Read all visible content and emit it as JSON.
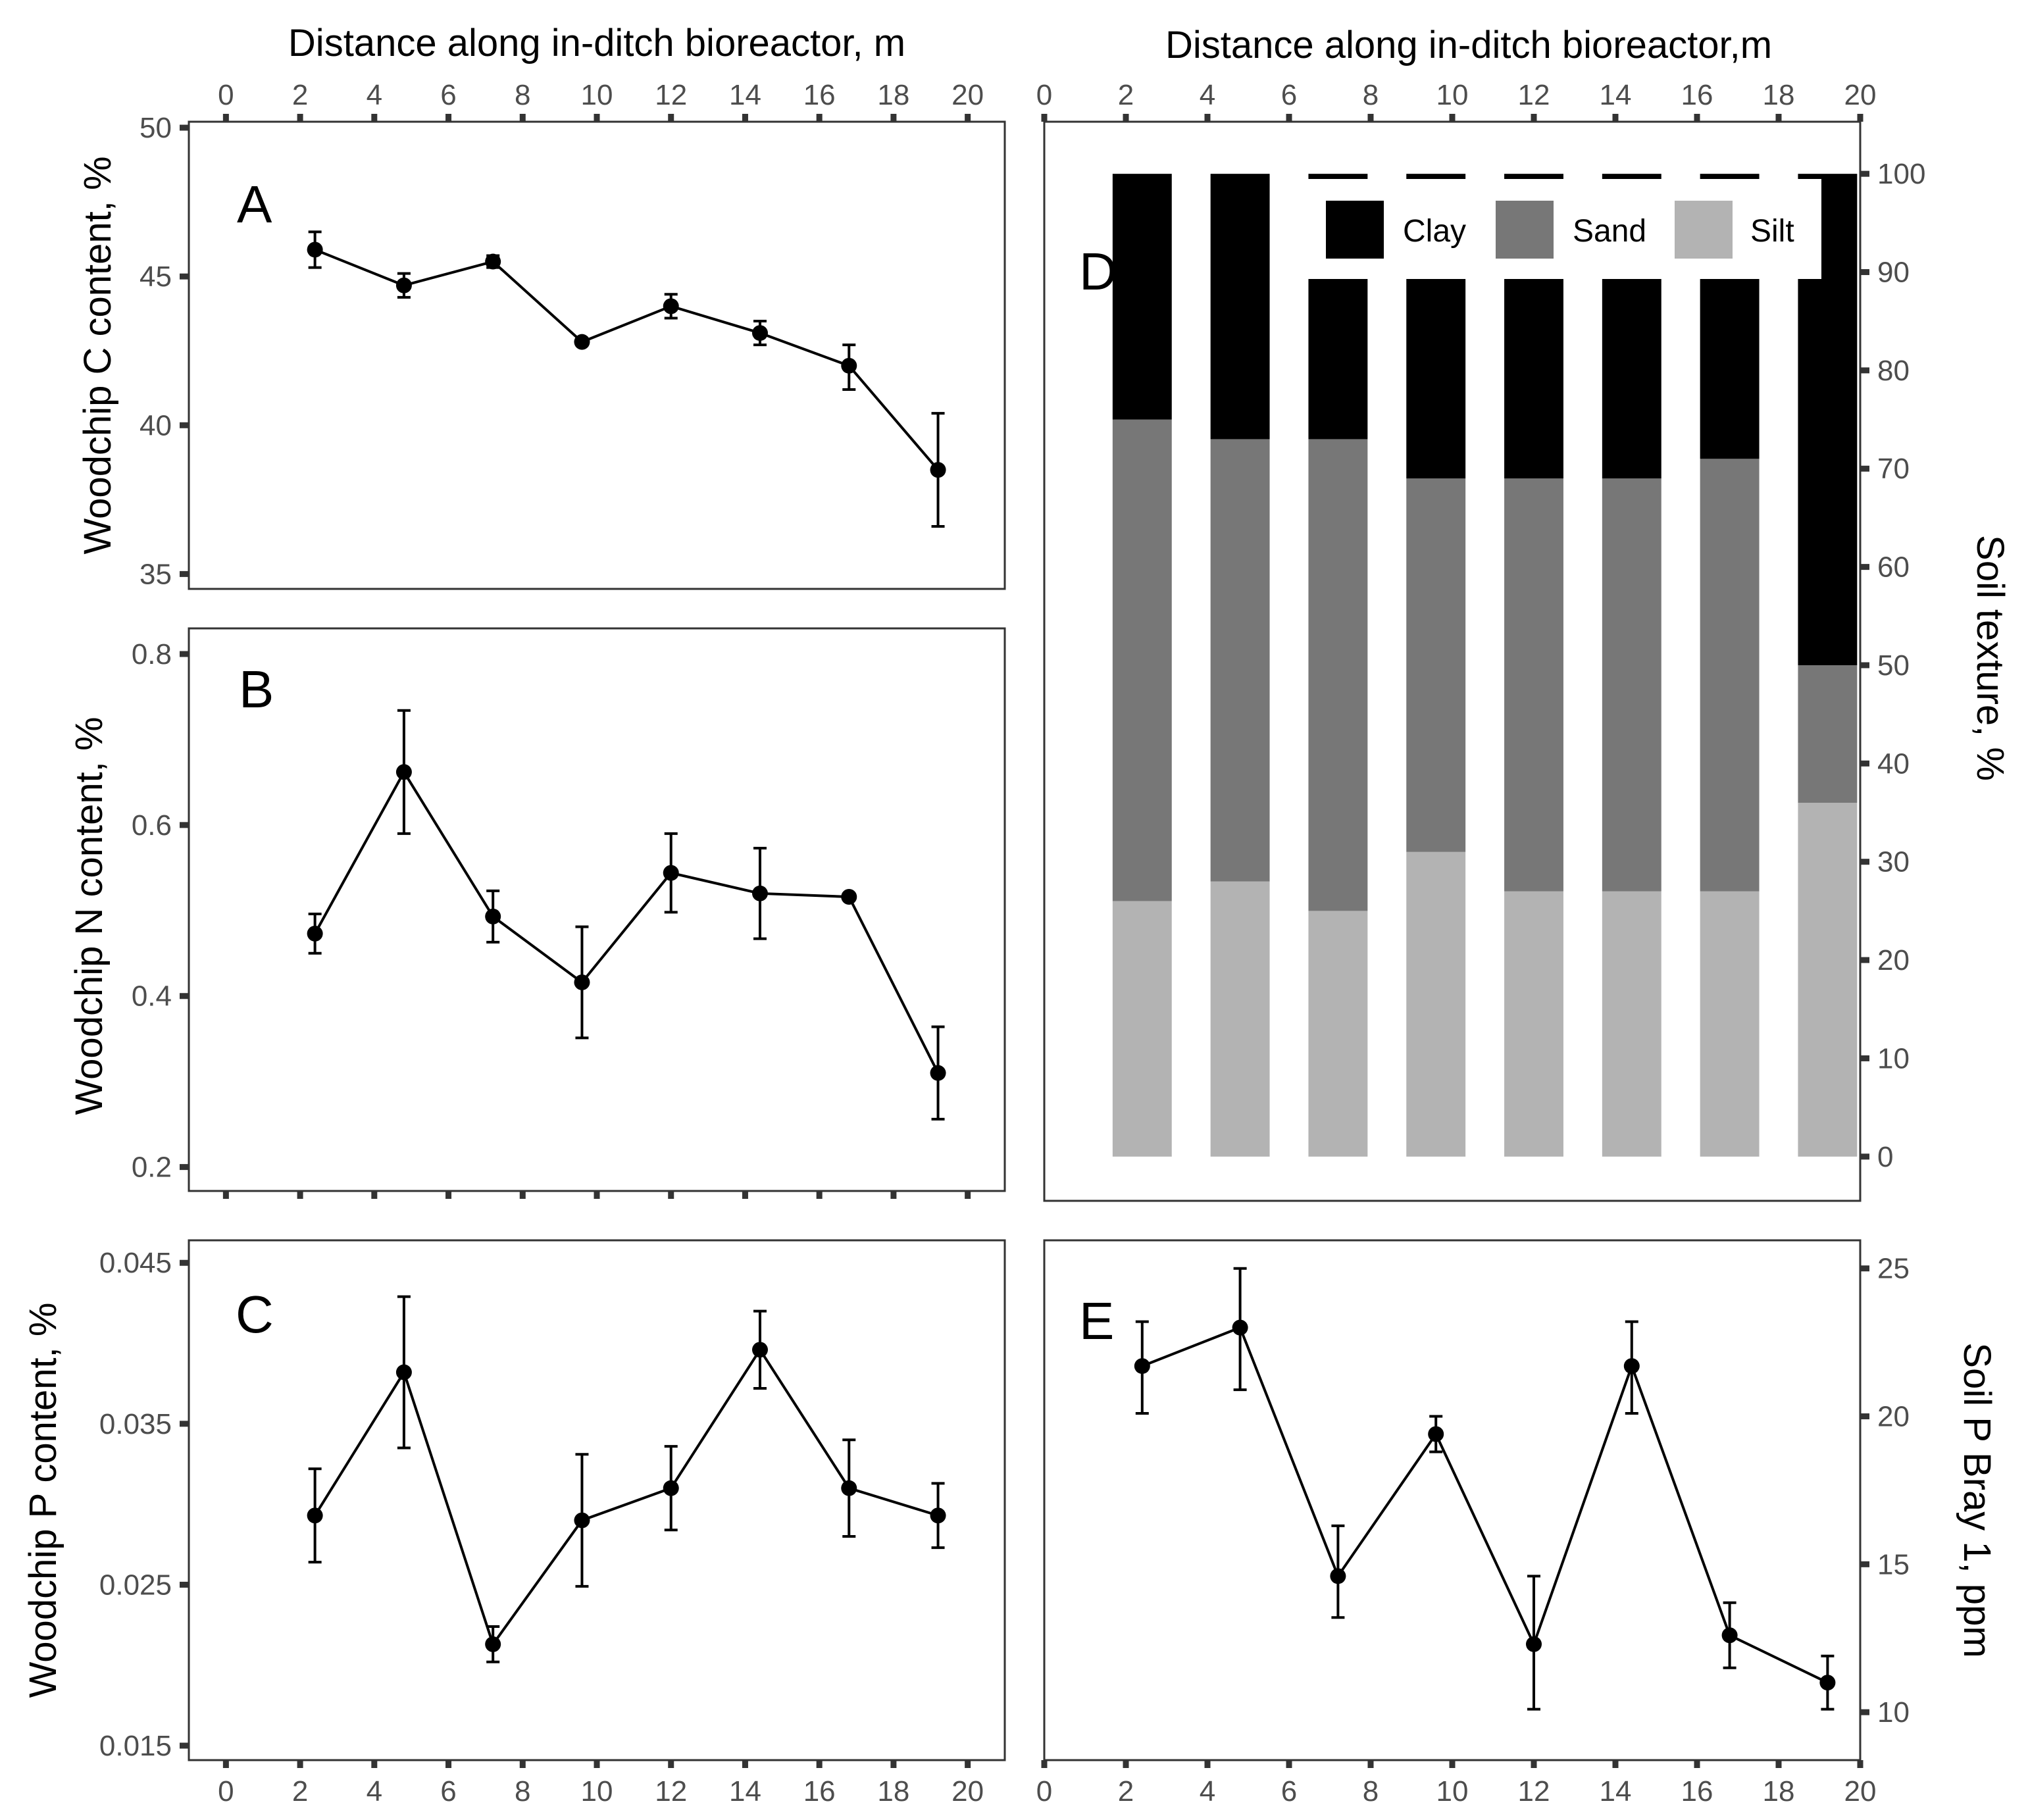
{
  "chart_data": [
    {
      "id": "A",
      "type": "line",
      "panel_label": "A",
      "xlabel": "Distance along in-ditch bioreactor, m",
      "ylabel": "Woodchip C content, %",
      "xlim": [
        -1,
        21
      ],
      "ylim": [
        34.5,
        50.2
      ],
      "x_ticks": [
        0,
        2,
        4,
        6,
        8,
        10,
        12,
        14,
        16,
        18,
        20
      ],
      "y_ticks": [
        35,
        40,
        45,
        50
      ],
      "x_tick_labels": [
        "0",
        "2",
        "4",
        "6",
        "8",
        "10",
        "12",
        "14",
        "16",
        "18",
        "20"
      ],
      "y_tick_labels": [
        "35",
        "40",
        "45",
        "50"
      ],
      "x": [
        2.4,
        4.8,
        7.2,
        9.6,
        12.0,
        14.4,
        16.8,
        19.2
      ],
      "y": [
        45.9,
        44.7,
        45.5,
        42.8,
        44.0,
        43.1,
        42.0,
        38.5
      ],
      "err_low": [
        45.3,
        44.3,
        45.3,
        42.7,
        43.6,
        42.7,
        41.2,
        36.6
      ],
      "err_high": [
        46.5,
        45.1,
        45.7,
        42.9,
        44.4,
        43.5,
        42.7,
        40.4
      ]
    },
    {
      "id": "B",
      "type": "line",
      "panel_label": "B",
      "ylabel": "Woodchip N content, %",
      "xlim": [
        -1,
        21
      ],
      "ylim": [
        0.172,
        0.83
      ],
      "x_ticks": [
        0,
        2,
        4,
        6,
        8,
        10,
        12,
        14,
        16,
        18,
        20
      ],
      "y_ticks": [
        0.2,
        0.4,
        0.6,
        0.8
      ],
      "y_tick_labels": [
        "0.2",
        "0.4",
        "0.6",
        "0.8"
      ],
      "x": [
        2.4,
        4.8,
        7.2,
        9.6,
        12.0,
        14.4,
        16.8,
        19.2
      ],
      "y": [
        0.473,
        0.662,
        0.493,
        0.416,
        0.544,
        0.52,
        0.516,
        0.31
      ],
      "err_low": [
        0.45,
        0.59,
        0.463,
        0.351,
        0.498,
        0.467,
        0.514,
        0.256
      ],
      "err_high": [
        0.496,
        0.734,
        0.523,
        0.481,
        0.59,
        0.573,
        0.518,
        0.364
      ]
    },
    {
      "id": "C",
      "type": "line",
      "panel_label": "C",
      "ylabel": "Woodchip P content, %",
      "xlim": [
        -1,
        21
      ],
      "ylim": [
        0.0141,
        0.0464
      ],
      "x_ticks": [
        0,
        2,
        4,
        6,
        8,
        10,
        12,
        14,
        16,
        18,
        20
      ],
      "y_ticks": [
        0.015,
        0.025,
        0.035,
        0.045
      ],
      "x_tick_labels": [
        "0",
        "2",
        "4",
        "6",
        "8",
        "10",
        "12",
        "14",
        "16",
        "18",
        "20"
      ],
      "y_tick_labels": [
        "0.015",
        "0.025",
        "0.035",
        "0.045"
      ],
      "x": [
        2.4,
        4.8,
        7.2,
        9.6,
        12.0,
        14.4,
        16.8,
        19.2
      ],
      "y": [
        0.0293,
        0.0382,
        0.0213,
        0.029,
        0.031,
        0.0396,
        0.031,
        0.0293
      ],
      "err_low": [
        0.0264,
        0.0335,
        0.0202,
        0.0249,
        0.0284,
        0.0372,
        0.028,
        0.0273
      ],
      "err_high": [
        0.0322,
        0.0429,
        0.0224,
        0.0331,
        0.0336,
        0.042,
        0.034,
        0.0313
      ]
    },
    {
      "id": "D",
      "type": "bar",
      "stacked": true,
      "panel_label": "D",
      "xlabel": "Distance along in-ditch bioreactor,m",
      "ylabel": "Soil texture, %",
      "xlim": [
        0,
        20
      ],
      "ylim": [
        -4.5,
        105.3
      ],
      "x_ticks": [
        0,
        2,
        4,
        6,
        8,
        10,
        12,
        14,
        16,
        18,
        20
      ],
      "y_ticks": [
        0,
        10,
        20,
        30,
        40,
        50,
        60,
        70,
        80,
        90,
        100
      ],
      "x_tick_labels": [
        "0",
        "2",
        "4",
        "6",
        "8",
        "10",
        "12",
        "14",
        "16",
        "18",
        "20"
      ],
      "y_tick_labels": [
        "0",
        "10",
        "20",
        "30",
        "40",
        "50",
        "60",
        "70",
        "80",
        "90",
        "100"
      ],
      "x": [
        2.4,
        4.8,
        7.2,
        9.6,
        12.0,
        14.4,
        16.8,
        19.2
      ],
      "bar_width_m": 1.45,
      "legend_position": "top-right",
      "series": [
        {
          "name": "Silt",
          "color": "#b3b3b3",
          "values": [
            26,
            28,
            25,
            31,
            27,
            27,
            27,
            36
          ]
        },
        {
          "name": "Sand",
          "color": "#777777",
          "values": [
            49,
            45,
            48,
            38,
            42,
            42,
            44,
            14
          ]
        },
        {
          "name": "Clay",
          "color": "#000000",
          "values": [
            25,
            27,
            27,
            31,
            31,
            31,
            29,
            50
          ]
        }
      ],
      "legend": [
        {
          "label": "Clay",
          "color": "#000000"
        },
        {
          "label": "Sand",
          "color": "#777777"
        },
        {
          "label": "Silt",
          "color": "#b3b3b3"
        }
      ]
    },
    {
      "id": "E",
      "type": "line",
      "panel_label": "E",
      "ylabel": "Soil P Bray 1, ppm",
      "xlim": [
        0,
        20
      ],
      "ylim": [
        8.38,
        25.95
      ],
      "x_ticks": [
        0,
        2,
        4,
        6,
        8,
        10,
        12,
        14,
        16,
        18,
        20
      ],
      "y_ticks": [
        10,
        15,
        20,
        25
      ],
      "x_tick_labels": [
        "0",
        "2",
        "4",
        "6",
        "8",
        "10",
        "12",
        "14",
        "16",
        "18",
        "20"
      ],
      "y_tick_labels": [
        "10",
        "15",
        "20",
        "25"
      ],
      "x": [
        2.4,
        4.8,
        7.2,
        9.6,
        12.0,
        14.4,
        16.8,
        19.2
      ],
      "y": [
        21.7,
        23.0,
        14.6,
        19.4,
        12.3,
        21.7,
        12.6,
        11.0
      ],
      "err_low": [
        20.1,
        20.9,
        13.2,
        18.8,
        10.1,
        20.1,
        11.5,
        10.1
      ],
      "err_high": [
        23.2,
        25.0,
        16.3,
        20.0,
        14.6,
        23.2,
        13.7,
        11.9
      ]
    }
  ]
}
